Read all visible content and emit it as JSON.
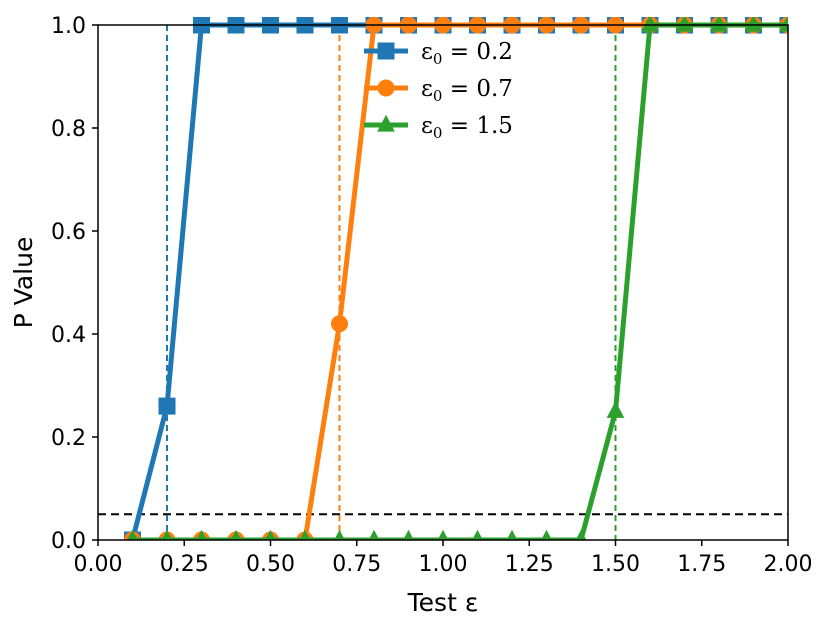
{
  "chart_data": {
    "type": "line",
    "xlabel": "Test ε",
    "ylabel": "P Value",
    "xlim": [
      0.0,
      2.0
    ],
    "ylim": [
      0.0,
      1.0
    ],
    "xticks": [
      "0.00",
      "0.25",
      "0.50",
      "0.75",
      "1.00",
      "1.25",
      "1.50",
      "1.75",
      "2.00"
    ],
    "yticks": [
      "0.0",
      "0.2",
      "0.4",
      "0.6",
      "0.8",
      "1.0"
    ],
    "legend_position": "top-center",
    "grid": false,
    "x": [
      0.1,
      0.2,
      0.3,
      0.4,
      0.5,
      0.6,
      0.7,
      0.8,
      0.9,
      1.0,
      1.1,
      1.2,
      1.3,
      1.4,
      1.5,
      1.6,
      1.7,
      1.8,
      1.9,
      2.0
    ],
    "series": [
      {
        "name_prefix": "ε",
        "name_sub": "0",
        "name_suffix": " = 0.2",
        "color": "#1f77b4",
        "marker": "square",
        "threshold": 0.2,
        "values": [
          0.0,
          0.26,
          1.0,
          1.0,
          1.0,
          1.0,
          1.0,
          1.0,
          1.0,
          1.0,
          1.0,
          1.0,
          1.0,
          1.0,
          1.0,
          1.0,
          1.0,
          1.0,
          1.0,
          1.0
        ]
      },
      {
        "name_prefix": "ε",
        "name_sub": "0",
        "name_suffix": " = 0.7",
        "color": "#ff7f0e",
        "marker": "circle",
        "threshold": 0.7,
        "values": [
          0.0,
          0.0,
          0.0,
          0.0,
          0.0,
          0.0,
          0.42,
          1.0,
          1.0,
          1.0,
          1.0,
          1.0,
          1.0,
          1.0,
          1.0,
          1.0,
          1.0,
          1.0,
          1.0,
          1.0
        ]
      },
      {
        "name_prefix": "ε",
        "name_sub": "0",
        "name_suffix": " = 1.5",
        "color": "#2ca02c",
        "marker": "triangle",
        "threshold": 1.5,
        "values": [
          0.0,
          0.0,
          0.0,
          0.0,
          0.0,
          0.0,
          0.0,
          0.0,
          0.0,
          0.0,
          0.0,
          0.0,
          0.0,
          0.0,
          0.25,
          1.0,
          1.0,
          1.0,
          1.0,
          1.0
        ]
      }
    ],
    "significance_line": 0.05
  }
}
